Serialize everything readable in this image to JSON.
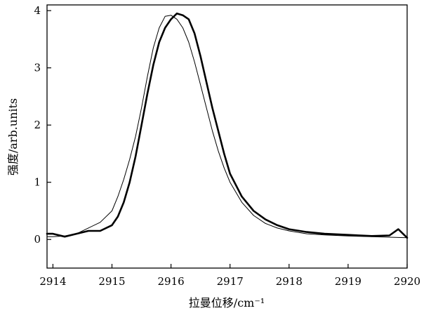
{
  "chart_data": {
    "type": "line",
    "title": "",
    "xlabel": "拉曼位移/cm⁻¹",
    "ylabel": "强度/arb.units",
    "xlim": [
      2913.9,
      2920
    ],
    "ylim": [
      -0.5,
      4.1
    ],
    "xticks": [
      2914,
      2915,
      2916,
      2917,
      2918,
      2919,
      2920
    ],
    "yticks": [
      0,
      1,
      2,
      3,
      4
    ],
    "grid": false,
    "legend": "none",
    "series": [
      {
        "style": "thick",
        "color": "#000000",
        "x": [
          2913.9,
          2914.0,
          2914.2,
          2914.4,
          2914.6,
          2914.8,
          2915.0,
          2915.1,
          2915.2,
          2915.3,
          2915.4,
          2915.5,
          2915.6,
          2915.7,
          2915.8,
          2915.9,
          2916.0,
          2916.1,
          2916.2,
          2916.3,
          2916.4,
          2916.5,
          2916.6,
          2916.7,
          2916.8,
          2916.9,
          2917.0,
          2917.2,
          2917.4,
          2917.6,
          2917.8,
          2918.0,
          2918.3,
          2918.6,
          2919.0,
          2919.4,
          2919.7,
          2919.85,
          2920.0
        ],
        "y": [
          0.1,
          0.1,
          0.05,
          0.1,
          0.15,
          0.15,
          0.25,
          0.4,
          0.65,
          1.0,
          1.45,
          2.0,
          2.55,
          3.05,
          3.45,
          3.7,
          3.85,
          3.95,
          3.92,
          3.85,
          3.6,
          3.2,
          2.75,
          2.3,
          1.9,
          1.5,
          1.15,
          0.75,
          0.5,
          0.35,
          0.25,
          0.18,
          0.13,
          0.1,
          0.08,
          0.06,
          0.07,
          0.18,
          0.03
        ]
      },
      {
        "style": "thin",
        "color": "#000000",
        "x": [
          2913.9,
          2914.0,
          2914.2,
          2914.4,
          2914.6,
          2914.8,
          2915.0,
          2915.1,
          2915.2,
          2915.3,
          2915.4,
          2915.5,
          2915.6,
          2915.7,
          2915.8,
          2915.9,
          2916.0,
          2916.1,
          2916.2,
          2916.3,
          2916.4,
          2916.5,
          2916.6,
          2916.7,
          2916.8,
          2916.9,
          2917.0,
          2917.2,
          2917.4,
          2917.6,
          2917.8,
          2918.0,
          2918.3,
          2918.6,
          2919.0,
          2919.4,
          2919.7,
          2920.0
        ],
        "y": [
          0.05,
          0.05,
          0.06,
          0.1,
          0.2,
          0.3,
          0.5,
          0.75,
          1.05,
          1.4,
          1.8,
          2.3,
          2.85,
          3.35,
          3.7,
          3.9,
          3.92,
          3.85,
          3.7,
          3.45,
          3.1,
          2.7,
          2.3,
          1.9,
          1.55,
          1.25,
          1.0,
          0.65,
          0.42,
          0.28,
          0.2,
          0.15,
          0.1,
          0.08,
          0.06,
          0.05,
          0.04,
          0.03
        ]
      }
    ]
  }
}
